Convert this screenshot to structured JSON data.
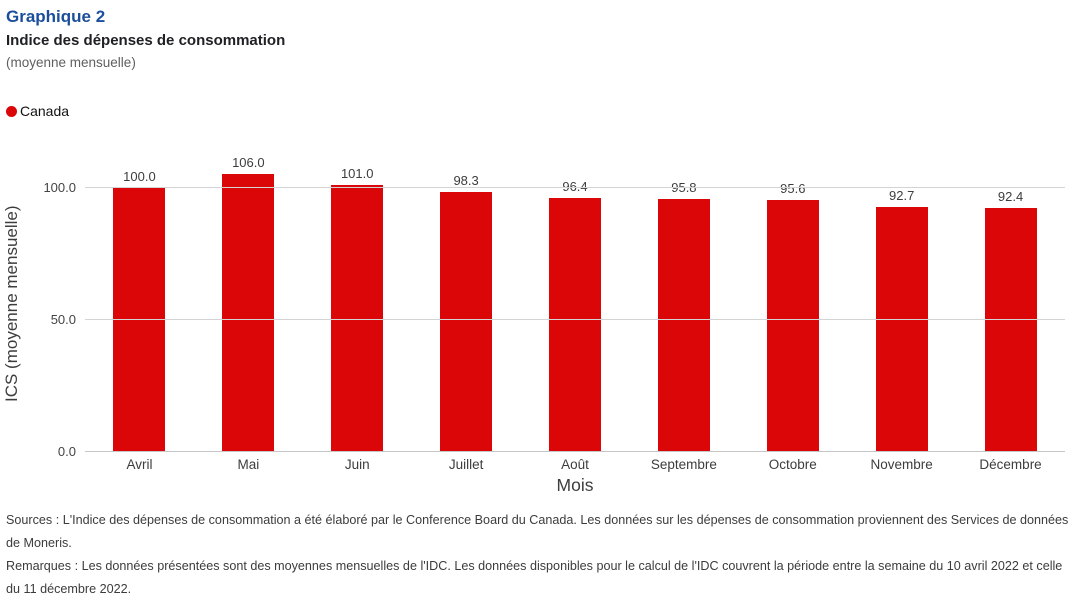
{
  "header": {
    "title": "Graphique 2",
    "subtitle": "Indice des dépenses de consommation",
    "note": "(moyenne mensuelle)"
  },
  "legend": {
    "items": [
      {
        "label": "Canada",
        "color": "#db0607"
      }
    ]
  },
  "chart_data": {
    "type": "bar",
    "title": "Indice des dépenses de consommation (moyenne mensuelle)",
    "categories": [
      "Avril",
      "Mai",
      "Juin",
      "Juillet",
      "Août",
      "Septembre",
      "Octobre",
      "Novembre",
      "Décembre"
    ],
    "series": [
      {
        "name": "Canada",
        "color": "#db0607",
        "values": [
          100.0,
          106.0,
          101.0,
          98.3,
          96.4,
          95.8,
          95.6,
          92.7,
          92.4
        ]
      }
    ],
    "value_labels": [
      "100.0",
      "106.0",
      "101.0",
      "98.3",
      "96.4",
      "95.8",
      "95.6",
      "92.7",
      "92.4"
    ],
    "xlabel": "Mois",
    "ylabel": "ICS (moyenne mensuelle)",
    "yticks": [
      {
        "value": 0,
        "label": "0.0"
      },
      {
        "value": 50,
        "label": "50.0"
      },
      {
        "value": 100,
        "label": "100.0"
      }
    ],
    "ylim": [
      0,
      112.5
    ],
    "grid": true,
    "legend_position": "top-left"
  },
  "footer": {
    "sources": "Sources : L'Indice des dépenses de consommation a été élaboré par le Conference Board du Canada. Les données sur les dépenses de consommation proviennent des Services de données de Moneris.",
    "remarks": "Remarques : Les données présentées sont des moyennes mensuelles de l'IDC. Les données disponibles pour le calcul de l'IDC couvrent la période entre la semaine du 10 avril 2022 et celle du 11 décembre 2022."
  }
}
